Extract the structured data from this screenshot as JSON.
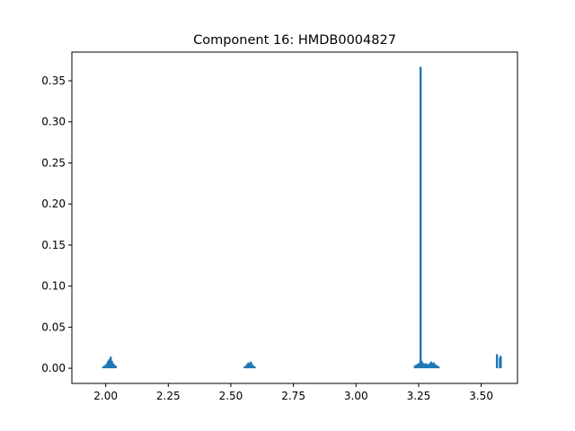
{
  "chart_data": {
    "type": "bar",
    "title": "Component 16: HMDB0004827",
    "xlabel": "",
    "ylabel": "",
    "xlim": [
      1.865,
      3.645
    ],
    "ylim": [
      -0.0185,
      0.385
    ],
    "x_ticks": [
      2.0,
      2.25,
      2.5,
      2.75,
      3.0,
      3.25,
      3.5
    ],
    "x_tick_labels": [
      "2.00",
      "2.25",
      "2.50",
      "2.75",
      "3.00",
      "3.25",
      "3.50"
    ],
    "y_ticks": [
      0.0,
      0.05,
      0.1,
      0.15,
      0.2,
      0.25,
      0.3,
      0.35
    ],
    "y_tick_labels": [
      "0.00",
      "0.05",
      "0.10",
      "0.15",
      "0.20",
      "0.25",
      "0.30",
      "0.35"
    ],
    "grid": false,
    "color": "#1f77b4",
    "bar_width": 0.0025,
    "x": [
      1.99,
      1.995,
      2.0,
      2.005,
      2.01,
      2.015,
      2.02,
      2.025,
      2.03,
      2.035,
      2.04,
      2.555,
      2.56,
      2.565,
      2.57,
      2.575,
      2.58,
      2.585,
      2.59,
      2.595,
      3.235,
      3.24,
      3.245,
      3.25,
      3.255,
      3.258,
      3.262,
      3.265,
      3.27,
      3.275,
      3.28,
      3.285,
      3.29,
      3.295,
      3.3,
      3.305,
      3.31,
      3.315,
      3.32,
      3.325,
      3.33,
      3.563,
      3.575,
      3.578
    ],
    "values": [
      0.002,
      0.003,
      0.004,
      0.006,
      0.009,
      0.011,
      0.014,
      0.009,
      0.006,
      0.004,
      0.003,
      0.002,
      0.003,
      0.005,
      0.007,
      0.006,
      0.008,
      0.005,
      0.003,
      0.002,
      0.003,
      0.004,
      0.005,
      0.006,
      0.007,
      0.367,
      0.009,
      0.007,
      0.006,
      0.005,
      0.006,
      0.004,
      0.005,
      0.006,
      0.008,
      0.006,
      0.007,
      0.005,
      0.004,
      0.003,
      0.002,
      0.017,
      0.013,
      0.015
    ]
  }
}
